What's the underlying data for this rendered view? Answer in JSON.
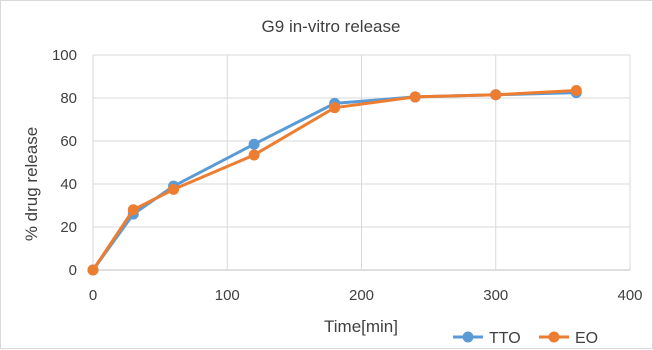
{
  "chart_data": {
    "type": "line",
    "title": "G9 in-vitro release",
    "xlabel": "Time[min]",
    "ylabel": "% drug release",
    "xlim": [
      0,
      400
    ],
    "ylim": [
      0,
      100
    ],
    "x_ticks": [
      0,
      100,
      200,
      300,
      400
    ],
    "y_ticks": [
      0,
      20,
      40,
      60,
      80,
      100
    ],
    "grid": true,
    "legend_position": "bottom-right",
    "series": [
      {
        "name": "TTO",
        "color": "#5b9bd5",
        "x": [
          0,
          30,
          60,
          120,
          180,
          240,
          300,
          360
        ],
        "y": [
          0,
          26,
          39,
          58.5,
          77.5,
          80.5,
          81.5,
          82.5
        ]
      },
      {
        "name": "EO",
        "color": "#ed7d31",
        "x": [
          0,
          30,
          60,
          120,
          180,
          240,
          300,
          360
        ],
        "y": [
          0,
          28,
          37.5,
          53.5,
          75.5,
          80.5,
          81.5,
          83.5
        ]
      }
    ]
  }
}
